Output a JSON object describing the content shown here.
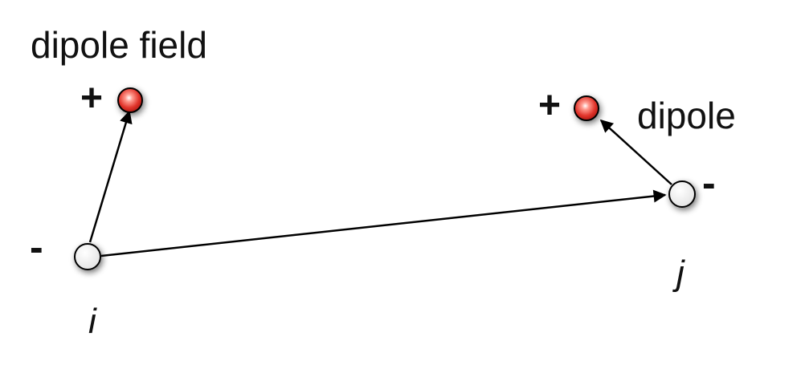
{
  "labels": {
    "dipole_field": "dipole field",
    "dipole": "dipole",
    "plus_i": "+",
    "plus_j": "+",
    "minus_i": "-",
    "minus_j": "-",
    "index_i": "i",
    "index_j": "j"
  },
  "colors": {
    "positive_charge": "#e8423a",
    "negative_charge": "#f2f2f2",
    "line": "#000000"
  }
}
